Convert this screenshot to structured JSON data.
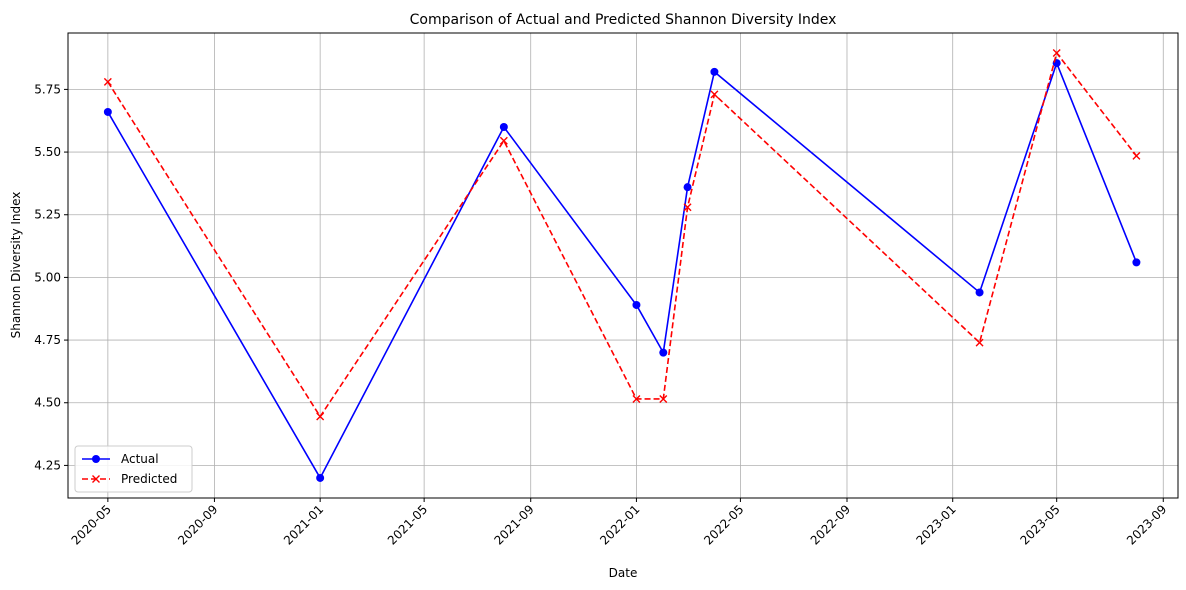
{
  "chart_data": {
    "type": "line",
    "title": "Comparison of Actual and Predicted Shannon Diversity Index",
    "xlabel": "Date",
    "ylabel": "Shannon Diversity Index",
    "x_type": "date",
    "xlim": [
      "2020-03-16",
      "2023-09-18"
    ],
    "ylim": [
      4.12,
      5.975
    ],
    "x_ticks": [
      "2020-05",
      "2020-09",
      "2021-01",
      "2021-05",
      "2021-09",
      "2022-01",
      "2022-05",
      "2022-09",
      "2023-01",
      "2023-05",
      "2023-09"
    ],
    "y_ticks": [
      "4.25",
      "4.50",
      "4.75",
      "5.00",
      "5.25",
      "5.50",
      "5.75"
    ],
    "grid": true,
    "legend_position": "lower-left",
    "x": [
      "2020-05-01",
      "2021-01-01",
      "2021-08-01",
      "2022-01-01",
      "2022-02-01",
      "2022-03-01",
      "2022-04-01",
      "2023-02-01",
      "2023-05-01",
      "2023-08-01"
    ],
    "series": [
      {
        "name": "Actual",
        "color": "#0000ff",
        "line_style": "solid",
        "marker": "circle",
        "values": [
          5.66,
          4.2,
          5.6,
          4.89,
          4.7,
          5.36,
          5.82,
          4.94,
          5.855,
          5.06
        ]
      },
      {
        "name": "Predicted",
        "color": "#ff0000",
        "line_style": "dashed",
        "marker": "x",
        "values": [
          5.78,
          4.445,
          5.545,
          4.515,
          4.515,
          5.28,
          5.73,
          4.74,
          5.895,
          5.485
        ]
      }
    ]
  }
}
